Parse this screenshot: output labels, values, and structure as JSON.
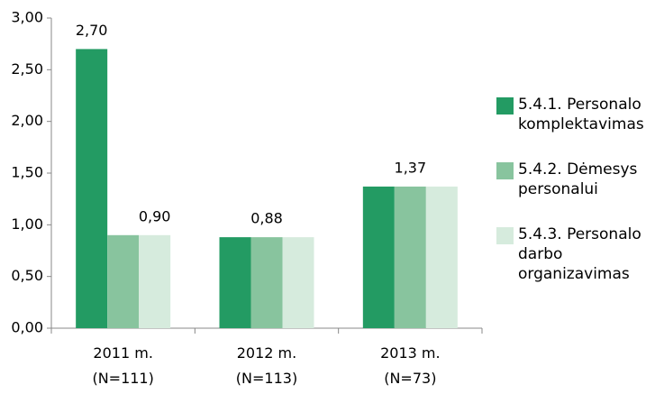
{
  "chart_data": {
    "type": "bar",
    "categories": [
      "2011 m. (N=111)",
      "2012 m. (N=113)",
      "2013 m. (N=73)"
    ],
    "series": [
      {
        "name": "5.4.1. Personalo komplektavimas",
        "color": "#239b63",
        "values": [
          2.7,
          0.88,
          1.37
        ],
        "value_labels": [
          "2,70",
          null,
          null
        ]
      },
      {
        "name": "5.4.2. Dėmesys personalui",
        "color": "#88c49e",
        "values": [
          0.9,
          0.88,
          1.37
        ],
        "value_labels": [
          null,
          "0,88",
          "1,37"
        ]
      },
      {
        "name": "5.4.3. Personalo darbo organizavimas",
        "color": "#d6ebdd",
        "values": [
          0.9,
          0.88,
          1.37
        ],
        "value_labels": [
          "0,90",
          null,
          null
        ]
      }
    ],
    "ylim": [
      0,
      3
    ],
    "yticks": [
      {
        "value": 0,
        "label": "0,00"
      },
      {
        "value": 0.5,
        "label": "0,50"
      },
      {
        "value": 1,
        "label": "1,00"
      },
      {
        "value": 1.5,
        "label": "1,50"
      },
      {
        "value": 2,
        "label": "2,00"
      },
      {
        "value": 2.5,
        "label": "2,50"
      },
      {
        "value": 3,
        "label": "3,00"
      }
    ],
    "grid": false,
    "legend": "right"
  }
}
